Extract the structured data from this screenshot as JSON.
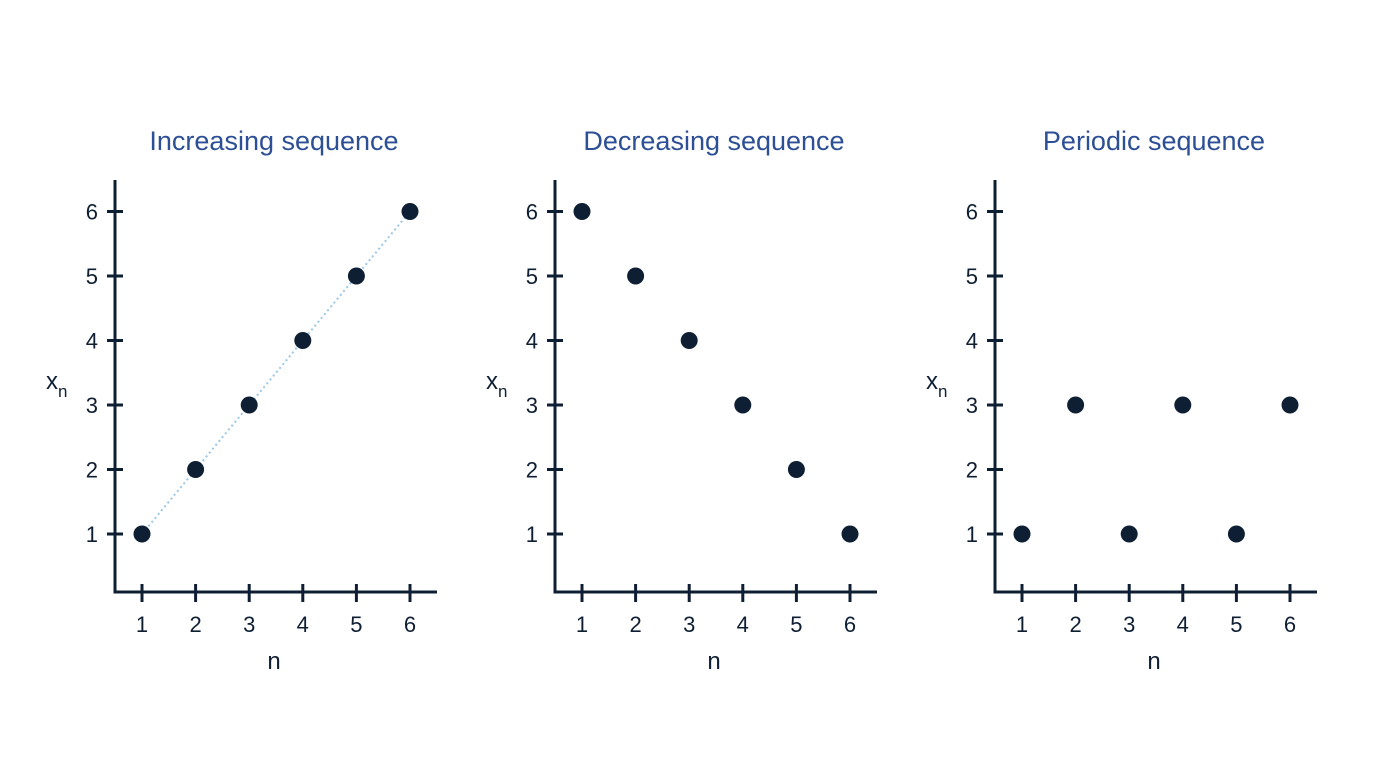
{
  "colors": {
    "title": "#2d4f96",
    "axis": "#0f1f33",
    "point": "#0f1f33",
    "connector": "#9cc8e6",
    "background": "#ffffff"
  },
  "chart_data": [
    {
      "type": "scatter",
      "title": "Increasing sequence",
      "xlabel": "n",
      "ylabel_main": "x",
      "ylabel_sub": "n",
      "x": [
        1,
        2,
        3,
        4,
        5,
        6
      ],
      "y": [
        1,
        2,
        3,
        4,
        5,
        6
      ],
      "xticks": [
        1,
        2,
        3,
        4,
        5,
        6
      ],
      "yticks": [
        1,
        2,
        3,
        4,
        5,
        6
      ],
      "xlim": [
        0.5,
        6.5
      ],
      "ylim": [
        0.1,
        6.45
      ],
      "connect": true,
      "grid": false
    },
    {
      "type": "scatter",
      "title": "Decreasing sequence",
      "xlabel": "n",
      "ylabel_main": "x",
      "ylabel_sub": "n",
      "x": [
        1,
        2,
        3,
        4,
        5,
        6
      ],
      "y": [
        6,
        5,
        4,
        3,
        2,
        1
      ],
      "xticks": [
        1,
        2,
        3,
        4,
        5,
        6
      ],
      "yticks": [
        1,
        2,
        3,
        4,
        5,
        6
      ],
      "xlim": [
        0.5,
        6.5
      ],
      "ylim": [
        0.1,
        6.45
      ],
      "connect": false,
      "grid": false
    },
    {
      "type": "scatter",
      "title": "Periodic sequence",
      "xlabel": "n",
      "ylabel_main": "x",
      "ylabel_sub": "n",
      "x": [
        1,
        2,
        3,
        4,
        5,
        6
      ],
      "y": [
        1,
        3,
        1,
        3,
        1,
        3
      ],
      "xticks": [
        1,
        2,
        3,
        4,
        5,
        6
      ],
      "yticks": [
        1,
        2,
        3,
        4,
        5,
        6
      ],
      "xlim": [
        0.5,
        6.5
      ],
      "ylim": [
        0.1,
        6.45
      ],
      "connect": false,
      "grid": false
    }
  ]
}
